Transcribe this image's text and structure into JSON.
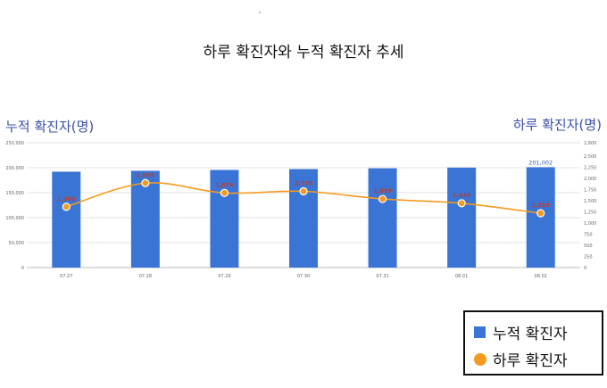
{
  "chart_data": {
    "type": "bar",
    "title": "하루 확진자와 누적 확진자 추세",
    "categories": [
      "07.27",
      "07.28",
      "07.29",
      "07.30",
      "07.31",
      "08.01",
      "08.02"
    ],
    "ylabel_left": "누적 확진자(명)",
    "ylabel_right": "하루 확진자(명)",
    "ylim_left": [
      0,
      250000
    ],
    "ylim_right": [
      0,
      2800
    ],
    "yticks_left": [
      "0",
      "50,000",
      "100,000",
      "150,000",
      "200,000",
      "250,000"
    ],
    "yticks_right": [
      "0",
      "250",
      "500",
      "750",
      "1,000",
      "1,250",
      "1,500",
      "1,750",
      "2,000",
      "2,250",
      "2,500",
      "2,800"
    ],
    "yticks_right_values": [
      0,
      250,
      500,
      750,
      1000,
      1250,
      1500,
      1750,
      2000,
      2250,
      2500,
      2800
    ],
    "series": [
      {
        "name": "누적 확진자",
        "type": "bar",
        "axis": "left",
        "color": "#3a75d6",
        "values": [
          192000,
          193800,
          195500,
          197200,
          198800,
          200200,
          201002
        ],
        "labels": [
          "",
          "",
          "",
          "",
          "",
          "",
          "201,002"
        ]
      },
      {
        "name": "하루 확진자",
        "type": "line",
        "axis": "right",
        "color": "#f49a1f",
        "values": [
          1363,
          1895,
          1674,
          1710,
          1539,
          1442,
          1219
        ],
        "labels": [
          "1,363",
          "1,895",
          "1,674",
          "1,710",
          "1,539",
          "1,442",
          "1,219"
        ]
      }
    ],
    "legend": "bottom-right",
    "grid": true
  }
}
